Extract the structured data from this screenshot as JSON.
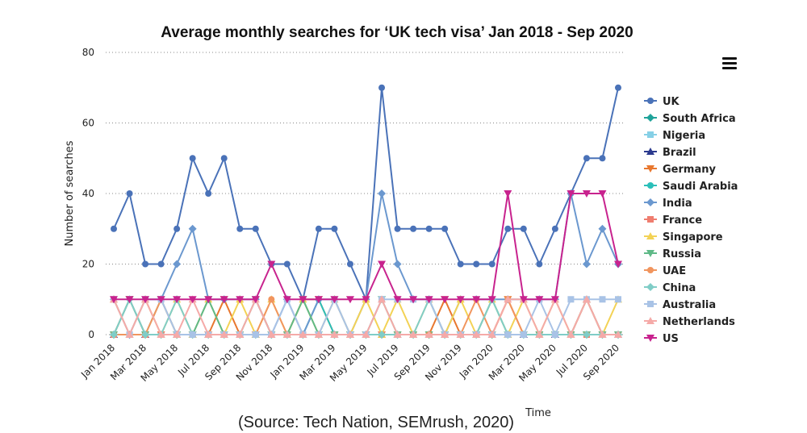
{
  "chart_data": {
    "type": "line",
    "title": "Average monthly searches for ‘UK tech visa’ Jan 2018 - Sep 2020",
    "xlabel": "Time",
    "ylabel": "Number of searches",
    "ylim": [
      0,
      80
    ],
    "yticks": [
      "0",
      "20",
      "40",
      "60",
      "80"
    ],
    "grid": true,
    "legend_position": "right",
    "x_tick_labels": [
      "Jan 2018",
      "Mar 2018",
      "May 2018",
      "Jul 2018",
      "Sep 2018",
      "Nov 2018",
      "Jan 2019",
      "Mar 2019",
      "May 2019",
      "Jul 2019",
      "Sep 2019",
      "Nov 2019",
      "Jan 2020",
      "Mar 2020",
      "May 2020",
      "Jul 2020",
      "Sep 2020"
    ],
    "x": [
      "Jan 2018",
      "Feb 2018",
      "Mar 2018",
      "Apr 2018",
      "May 2018",
      "Jun 2018",
      "Jul 2018",
      "Aug 2018",
      "Sep 2018",
      "Oct 2018",
      "Nov 2018",
      "Dec 2018",
      "Jan 2019",
      "Feb 2019",
      "Mar 2019",
      "Apr 2019",
      "May 2019",
      "Jun 2019",
      "Jul 2019",
      "Aug 2019",
      "Sep 2019",
      "Oct 2019",
      "Nov 2019",
      "Dec 2019",
      "Jan 2020",
      "Feb 2020",
      "Mar 2020",
      "Apr 2020",
      "May 2020",
      "Jun 2020",
      "Jul 2020",
      "Aug 2020",
      "Sep 2020"
    ],
    "series": [
      {
        "name": "UK",
        "color": "#4a72b8",
        "marker": "circle",
        "values": [
          30,
          40,
          20,
          20,
          30,
          50,
          40,
          50,
          30,
          30,
          20,
          20,
          10,
          30,
          30,
          20,
          10,
          70,
          30,
          30,
          30,
          30,
          20,
          20,
          20,
          30,
          30,
          20,
          30,
          40,
          50,
          50,
          70
        ]
      },
      {
        "name": "South Africa",
        "color": "#1fa39a",
        "marker": "diamond",
        "values": [
          0,
          0,
          0,
          0,
          0,
          0,
          0,
          0,
          0,
          0,
          0,
          0,
          0,
          0,
          0,
          0,
          0,
          0,
          0,
          0,
          0,
          0,
          0,
          0,
          0,
          0,
          0,
          0,
          0,
          0,
          0,
          0,
          0
        ]
      },
      {
        "name": "Nigeria",
        "color": "#86d0e6",
        "marker": "square",
        "values": [
          0,
          0,
          0,
          0,
          0,
          0,
          0,
          0,
          0,
          0,
          0,
          0,
          0,
          0,
          0,
          0,
          0,
          0,
          0,
          0,
          0,
          0,
          0,
          0,
          0,
          0,
          0,
          0,
          0,
          0,
          0,
          0,
          0
        ]
      },
      {
        "name": "Brazil",
        "color": "#2b3a8e",
        "marker": "triangle",
        "values": [
          0,
          0,
          0,
          0,
          0,
          0,
          0,
          0,
          0,
          0,
          0,
          0,
          0,
          0,
          0,
          0,
          0,
          0,
          0,
          0,
          0,
          0,
          0,
          0,
          0,
          0,
          0,
          0,
          0,
          0,
          10,
          0,
          0
        ]
      },
      {
        "name": "Germany",
        "color": "#e8772e",
        "marker": "triangle-down",
        "values": [
          0,
          10,
          0,
          0,
          0,
          0,
          0,
          10,
          0,
          0,
          0,
          0,
          10,
          10,
          0,
          0,
          0,
          0,
          0,
          0,
          0,
          10,
          0,
          0,
          0,
          10,
          0,
          0,
          0,
          0,
          0,
          0,
          0
        ]
      },
      {
        "name": "Saudi Arabia",
        "color": "#2bbfb9",
        "marker": "circle",
        "values": [
          0,
          0,
          0,
          0,
          0,
          0,
          0,
          0,
          0,
          0,
          0,
          0,
          0,
          10,
          0,
          0,
          0,
          0,
          0,
          0,
          0,
          0,
          0,
          0,
          10,
          0,
          0,
          0,
          0,
          0,
          0,
          0,
          0
        ]
      },
      {
        "name": "India",
        "color": "#6b98cf",
        "marker": "diamond",
        "values": [
          10,
          0,
          10,
          10,
          20,
          30,
          10,
          10,
          10,
          10,
          0,
          10,
          0,
          10,
          10,
          0,
          10,
          40,
          20,
          10,
          10,
          0,
          10,
          10,
          10,
          10,
          10,
          10,
          10,
          40,
          20,
          30,
          20
        ]
      },
      {
        "name": "France",
        "color": "#ef7d6f",
        "marker": "square",
        "values": [
          0,
          0,
          0,
          0,
          0,
          0,
          0,
          0,
          0,
          0,
          0,
          0,
          0,
          0,
          0,
          0,
          0,
          0,
          0,
          0,
          0,
          0,
          0,
          0,
          0,
          0,
          0,
          0,
          0,
          0,
          0,
          0,
          0
        ]
      },
      {
        "name": "Singapore",
        "color": "#f3d255",
        "marker": "triangle",
        "values": [
          10,
          0,
          10,
          0,
          10,
          0,
          10,
          0,
          10,
          0,
          10,
          0,
          10,
          0,
          10,
          0,
          10,
          0,
          10,
          0,
          10,
          0,
          10,
          0,
          10,
          0,
          10,
          0,
          10,
          0,
          10,
          0,
          10
        ]
      },
      {
        "name": "Russia",
        "color": "#5fb987",
        "marker": "triangle-down",
        "values": [
          0,
          10,
          0,
          10,
          0,
          0,
          10,
          0,
          0,
          10,
          0,
          0,
          10,
          0,
          0,
          0,
          0,
          10,
          0,
          0,
          0,
          0,
          0,
          0,
          0,
          0,
          0,
          0,
          0,
          0,
          0,
          0,
          0
        ]
      },
      {
        "name": "UAE",
        "color": "#f1955e",
        "marker": "circle",
        "values": [
          0,
          0,
          0,
          10,
          0,
          0,
          0,
          0,
          0,
          0,
          10,
          0,
          0,
          0,
          0,
          0,
          0,
          0,
          0,
          0,
          0,
          0,
          0,
          10,
          0,
          10,
          0,
          0,
          0,
          0,
          0,
          0,
          0
        ]
      },
      {
        "name": "China",
        "color": "#80cdc7",
        "marker": "diamond",
        "values": [
          0,
          10,
          0,
          0,
          10,
          0,
          0,
          0,
          0,
          0,
          0,
          0,
          0,
          0,
          0,
          0,
          0,
          0,
          0,
          0,
          10,
          0,
          0,
          0,
          10,
          0,
          0,
          0,
          0,
          0,
          0,
          0,
          0
        ]
      },
      {
        "name": "Australia",
        "color": "#a9c3e6",
        "marker": "square",
        "values": [
          10,
          0,
          10,
          10,
          0,
          0,
          0,
          0,
          0,
          0,
          0,
          10,
          0,
          0,
          10,
          0,
          0,
          10,
          10,
          10,
          10,
          0,
          0,
          0,
          0,
          0,
          0,
          10,
          0,
          10,
          10,
          10,
          10
        ]
      },
      {
        "name": "Netherlands",
        "color": "#f5aaa8",
        "marker": "triangle",
        "values": [
          10,
          0,
          10,
          0,
          0,
          10,
          0,
          0,
          0,
          10,
          0,
          0,
          0,
          0,
          0,
          0,
          0,
          10,
          0,
          0,
          0,
          0,
          0,
          0,
          0,
          10,
          10,
          0,
          10,
          0,
          10,
          0,
          0
        ]
      },
      {
        "name": "US",
        "color": "#c8238e",
        "marker": "triangle-down",
        "values": [
          10,
          10,
          10,
          10,
          10,
          10,
          10,
          10,
          10,
          10,
          20,
          10,
          10,
          10,
          10,
          10,
          10,
          20,
          10,
          10,
          10,
          10,
          10,
          10,
          10,
          40,
          10,
          10,
          10,
          40,
          40,
          40,
          20
        ]
      }
    ]
  },
  "caption": {
    "source_text": "(Source: Tech Nation, SEMrush, 2020)"
  },
  "menu": {
    "icon": "hamburger-menu-icon"
  }
}
